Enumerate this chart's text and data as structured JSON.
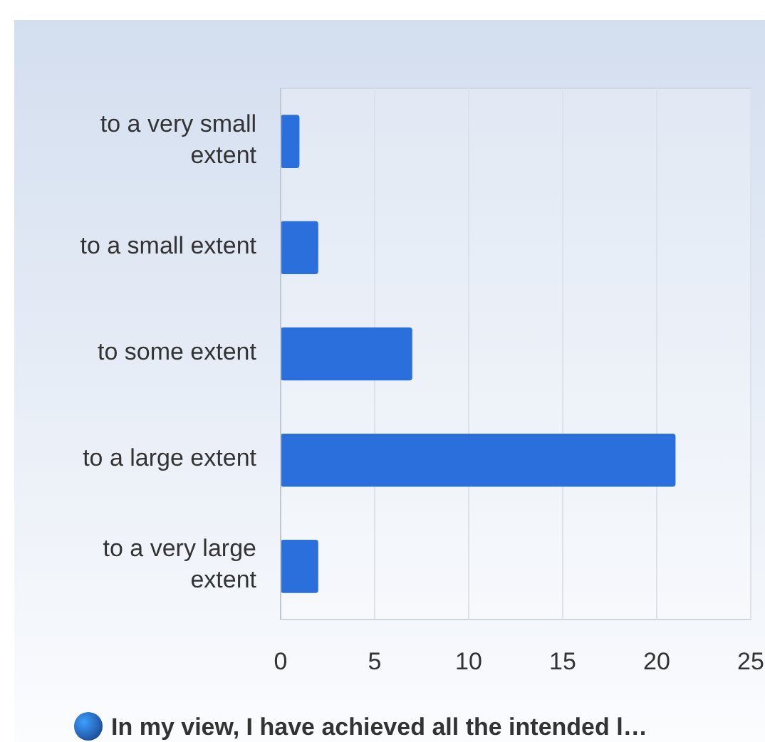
{
  "chart_data": {
    "type": "bar",
    "orientation": "horizontal",
    "categories": [
      "to a very small extent",
      "to a small extent",
      "to some extent",
      "to a large extent",
      "to a very large extent"
    ],
    "series": [
      {
        "name": "In my view, I have achieved all the intended l…",
        "color": "#2a6fdc",
        "values": [
          1,
          2,
          7,
          21,
          2
        ]
      }
    ],
    "xlim": [
      0,
      25
    ],
    "xticks": [
      0,
      5,
      10,
      15,
      20,
      25
    ],
    "grid": "x",
    "legend": "bottom"
  }
}
